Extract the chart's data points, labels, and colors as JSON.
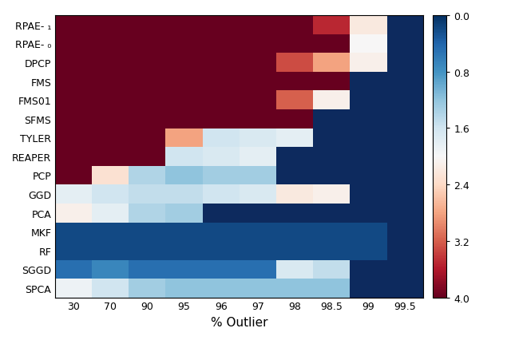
{
  "methods": [
    "RPAE- ₁",
    "RPAE- ₀",
    "DPCP",
    "FMS",
    "FMS01",
    "SFMS",
    "TYLER",
    "REAPER",
    "PCP",
    "GGD",
    "PCA",
    "MKF",
    "RF",
    "SGGD",
    "SPCA"
  ],
  "x_labels": [
    "30",
    "70",
    "90",
    "95",
    "96",
    "97",
    "98",
    "98.5",
    "99",
    "99.5"
  ],
  "xlabel": "% Outlier",
  "vmin": 0.0,
  "vmax": 4.0,
  "nan_color": "#0d2a5e",
  "cbar_ticks": [
    0.0,
    0.8,
    1.6,
    2.4,
    3.2,
    4.0
  ],
  "cbar_labels": [
    "0.0",
    "0.8",
    "1.6",
    "2.4",
    "3.2",
    "4.0"
  ],
  "data": [
    [
      4.0,
      4.0,
      4.0,
      4.0,
      4.0,
      4.0,
      4.0,
      3.5,
      2.2,
      null
    ],
    [
      4.0,
      4.0,
      4.0,
      4.0,
      4.0,
      4.0,
      4.0,
      4.0,
      2.0,
      null
    ],
    [
      4.0,
      4.0,
      4.0,
      4.0,
      4.0,
      4.0,
      3.3,
      2.8,
      2.1,
      null
    ],
    [
      4.0,
      4.0,
      4.0,
      4.0,
      4.0,
      4.0,
      4.0,
      4.0,
      null,
      null
    ],
    [
      4.0,
      4.0,
      4.0,
      4.0,
      4.0,
      4.0,
      3.2,
      2.1,
      null,
      null
    ],
    [
      4.0,
      4.0,
      4.0,
      4.0,
      4.0,
      4.0,
      4.0,
      null,
      null,
      null
    ],
    [
      4.0,
      4.0,
      4.0,
      2.8,
      1.6,
      1.7,
      1.8,
      null,
      null,
      null
    ],
    [
      4.0,
      4.0,
      4.0,
      1.6,
      1.7,
      1.8,
      null,
      null,
      null,
      null
    ],
    [
      4.0,
      2.3,
      1.4,
      1.2,
      1.3,
      1.3,
      null,
      null,
      null,
      null
    ],
    [
      1.8,
      1.6,
      1.5,
      1.5,
      1.6,
      1.7,
      2.2,
      2.1,
      null,
      null
    ],
    [
      2.1,
      1.8,
      1.4,
      1.3,
      null,
      null,
      null,
      null,
      null,
      null
    ],
    [
      0.2,
      0.2,
      0.2,
      0.2,
      0.2,
      0.2,
      0.2,
      0.2,
      0.2,
      null
    ],
    [
      0.2,
      0.2,
      0.2,
      0.2,
      0.2,
      0.2,
      0.2,
      0.2,
      0.2,
      null
    ],
    [
      0.5,
      0.7,
      0.5,
      0.5,
      0.5,
      0.5,
      1.7,
      1.5,
      null,
      null
    ],
    [
      1.9,
      1.6,
      1.3,
      1.2,
      1.2,
      1.2,
      1.2,
      1.2,
      null,
      null
    ]
  ]
}
